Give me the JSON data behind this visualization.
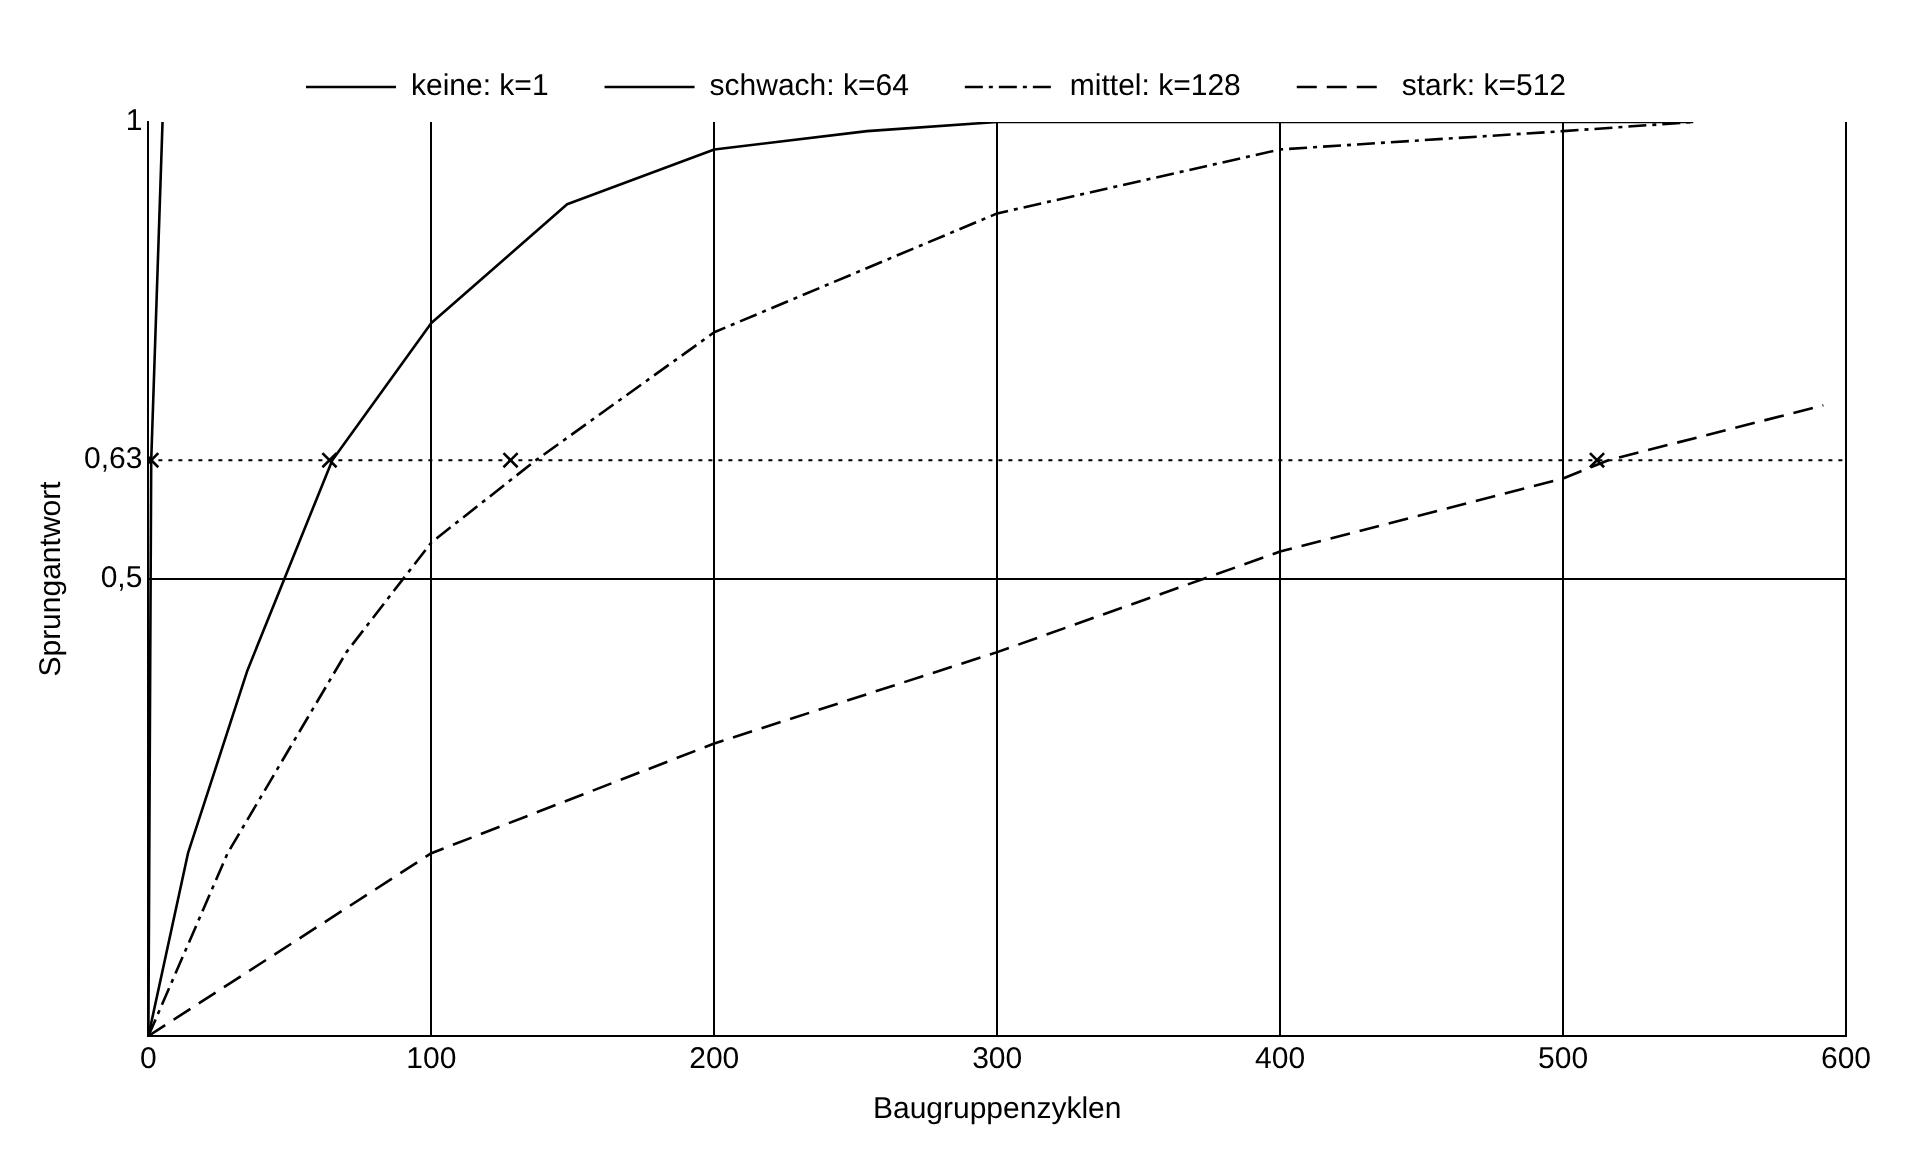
{
  "chart_data": {
    "type": "line",
    "xlabel": "Baugruppenzyklen",
    "ylabel": "Sprungantwort",
    "xlim": [
      0,
      600
    ],
    "xticks": [
      0,
      100,
      200,
      300,
      400,
      500,
      600
    ],
    "ylim": [
      0,
      1
    ],
    "yticks": [
      {
        "value": 0.5,
        "label": "0,5"
      },
      {
        "value": 0.63,
        "label": "0,63"
      },
      1
    ],
    "grid": "x",
    "legend": "top",
    "marker": "none",
    "series": [
      {
        "name": "keine: k=1",
        "color": "#000000",
        "line_style": "solid",
        "x": [
          0,
          1,
          5
        ],
        "values": [
          0,
          0.63,
          1
        ]
      },
      {
        "name": "schwach: k=64",
        "color": "#000000",
        "line_style": "solid",
        "x": [
          0,
          14,
          35,
          65,
          100,
          148,
          200,
          254,
          300,
          400,
          546
        ],
        "values": [
          0,
          0.2,
          0.4,
          0.63,
          0.78,
          0.91,
          0.97,
          0.99,
          1,
          1,
          1
        ]
      },
      {
        "name": "mittel: k=128",
        "color": "#000000",
        "line_style": "dashdot",
        "x": [
          0,
          28,
          70,
          100,
          137,
          200,
          300,
          400,
          500,
          546
        ],
        "values": [
          0,
          0.2,
          0.42,
          0.54,
          0.63,
          0.77,
          0.9,
          0.97,
          0.99,
          1
        ]
      },
      {
        "name": "stark: k=512",
        "color": "#000000",
        "line_style": "dashed",
        "x": [
          0,
          100,
          200,
          300,
          400,
          500,
          516,
          592
        ],
        "values": [
          0,
          0.2,
          0.32,
          0.42,
          0.53,
          0.61,
          0.63,
          0.69
        ]
      },
      {
        "type": "scatter",
        "marker": "cross",
        "color": "#000000",
        "x": [
          1,
          64,
          128,
          512
        ],
        "values": [
          0.63,
          0.63,
          0.63,
          0.63
        ]
      }
    ],
    "ref_lines": [
      {
        "axis": "y",
        "value": 0.63,
        "line_style": "dotted",
        "color": "#000000"
      },
      {
        "axis": "y",
        "value": 0.5,
        "line_style": "solid",
        "color": "#000000"
      }
    ]
  }
}
